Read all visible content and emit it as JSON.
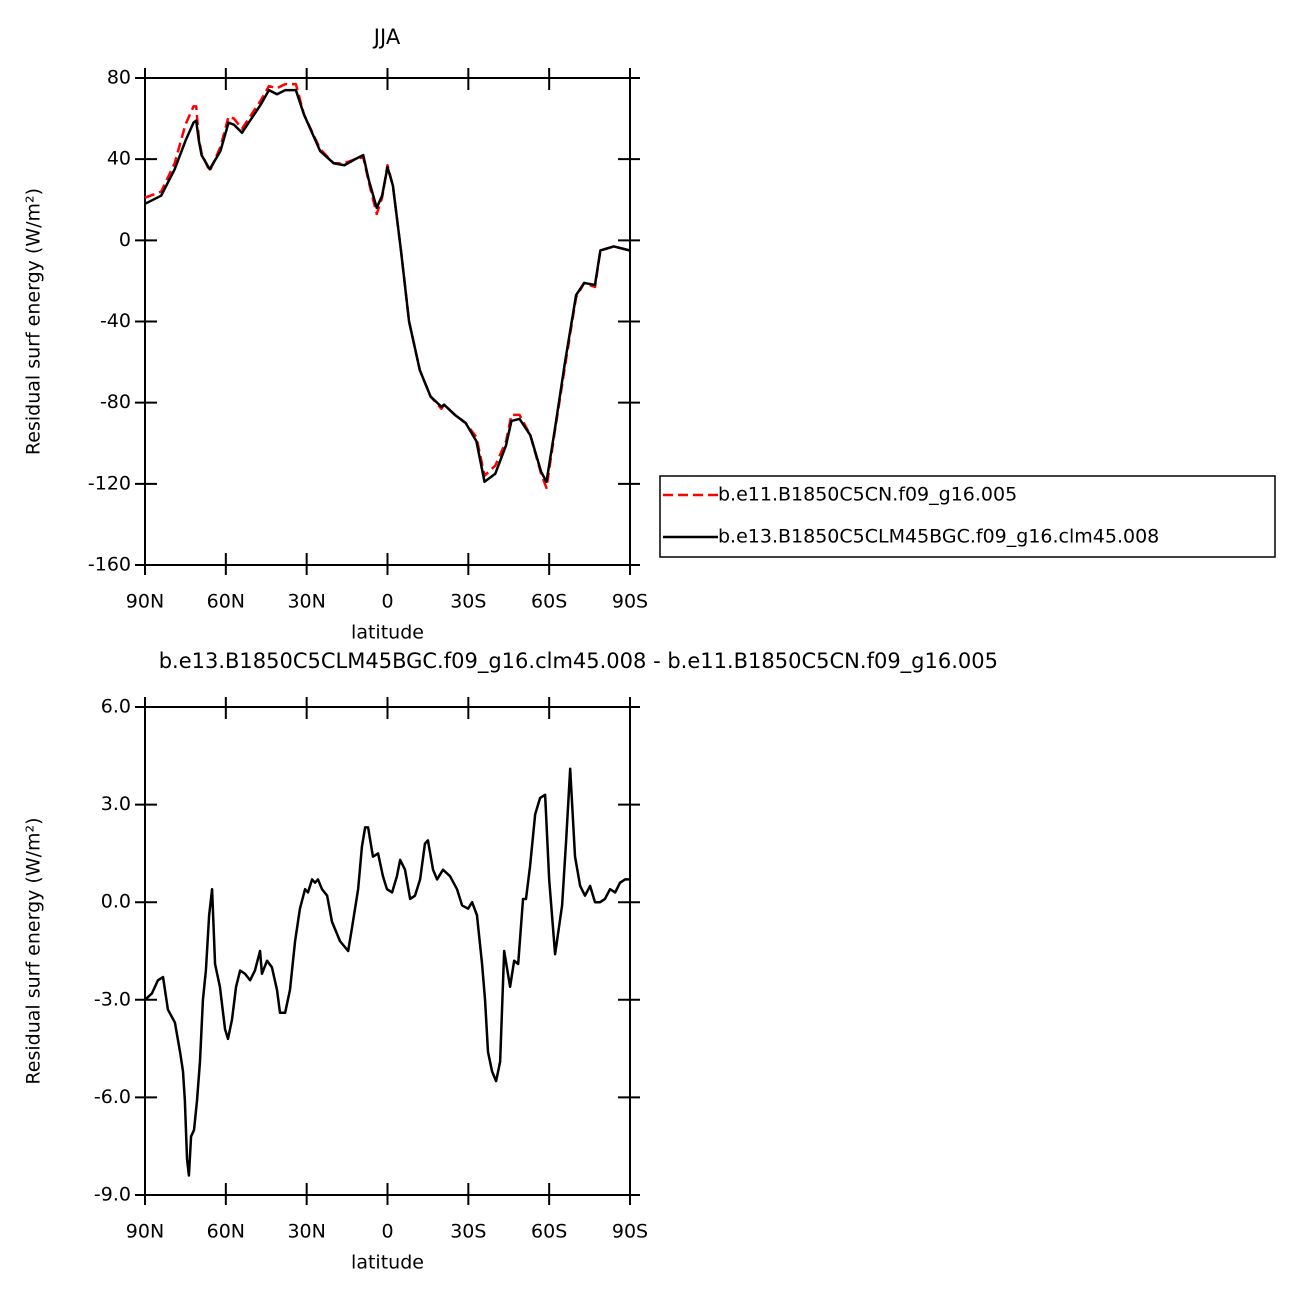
{
  "chart_data": [
    {
      "type": "line",
      "title": "JJA",
      "ylabel": "Residual surf energy (W/m²)",
      "xlabel": "latitude",
      "xlim": [
        90,
        -90
      ],
      "xticks": [
        {
          "value": 90,
          "label": "90N"
        },
        {
          "value": 60,
          "label": "60N"
        },
        {
          "value": 30,
          "label": "30N"
        },
        0,
        {
          "value": -30,
          "label": "30S"
        },
        {
          "value": -60,
          "label": "60S"
        },
        {
          "value": -90,
          "label": "90S"
        }
      ],
      "ylim": [
        -160,
        80
      ],
      "yticks": [
        80,
        40,
        0,
        -40,
        -80,
        -120,
        -160
      ],
      "legend": "right",
      "x": [
        90,
        84,
        79,
        75,
        72,
        71,
        70,
        69,
        66,
        62,
        59,
        57,
        54,
        51,
        47,
        44,
        41,
        38,
        34,
        31,
        25,
        20,
        16,
        12,
        9,
        7,
        4,
        2,
        0,
        -2,
        -5,
        -8,
        -12,
        -16,
        -20,
        -21,
        -25,
        -29,
        -33,
        -36,
        -40,
        -44,
        -46,
        -49,
        -53,
        -57,
        -59,
        -62,
        -66,
        -70,
        -73,
        -77,
        -79,
        -84,
        -90
      ],
      "series": [
        {
          "name": "b.e11.B1850C5CN.f09_g16.005",
          "color": "#ff0000",
          "linestyle": "dashed",
          "values": [
            21,
            24,
            38,
            57,
            66,
            66,
            50,
            43,
            34,
            46,
            61,
            60,
            55,
            61,
            69,
            76,
            75,
            77,
            77,
            62,
            45,
            38,
            38,
            40,
            41,
            29,
            13,
            21,
            37,
            27,
            -5,
            -40,
            -64,
            -77,
            -83,
            -81,
            -86,
            -90,
            -97,
            -116,
            -111,
            -99,
            -86,
            -86,
            -96,
            -115,
            -122,
            -95,
            -61,
            -28,
            -21,
            -23,
            -5,
            -3,
            -5
          ]
        },
        {
          "name": "b.e13.B1850C5CLM45BGC.f09_g16.clm45.008",
          "color": "#000000",
          "linestyle": "solid",
          "values": [
            18,
            22,
            35,
            49,
            58,
            59,
            49,
            42,
            35,
            44,
            58,
            57,
            53,
            59,
            67,
            74,
            72,
            74,
            74,
            62,
            44,
            38,
            37,
            40,
            42,
            30,
            16,
            22,
            36,
            27,
            -5,
            -40,
            -64,
            -77,
            -82,
            -81,
            -86,
            -90,
            -99,
            -119,
            -115,
            -101,
            -89,
            -88,
            -96,
            -114,
            -119,
            -94,
            -59,
            -27,
            -21,
            -22,
            -5,
            -3,
            -5
          ]
        }
      ]
    },
    {
      "type": "line",
      "title": "b.e13.B1850C5CLM45BGC.f09_g16.clm45.008 - b.e11.B1850C5CN.f09_g16.005",
      "ylabel": "Residual surf energy (W/m²)",
      "xlabel": "latitude",
      "xlim": [
        90,
        -90
      ],
      "xticks": [
        {
          "value": 90,
          "label": "90N"
        },
        {
          "value": 60,
          "label": "60N"
        },
        {
          "value": 30,
          "label": "30N"
        },
        0,
        {
          "value": -30,
          "label": "30S"
        },
        {
          "value": -60,
          "label": "60S"
        },
        {
          "value": -90,
          "label": "90S"
        }
      ],
      "ylim": [
        -9,
        6
      ],
      "yticks": [
        {
          "value": 6,
          "label": "6.0"
        },
        {
          "value": 3,
          "label": "3.0"
        },
        {
          "value": 0,
          "label": "0.0"
        },
        {
          "value": -3,
          "label": "-3.0"
        },
        {
          "value": -6,
          "label": "-6.0"
        },
        {
          "value": -9,
          "label": "-9.0"
        }
      ],
      "x": [
        90,
        87.4,
        85.2,
        83.3,
        81.5,
        78.9,
        77.0,
        75.9,
        75.2,
        74.4,
        73.7,
        72.9,
        71.8,
        70.7,
        69.6,
        68.5,
        67.4,
        66.2,
        65.1,
        64.0,
        62.2,
        60.3,
        59.2,
        57.7,
        56.2,
        54.7,
        52.9,
        51.0,
        49.2,
        47.3,
        46.6,
        44.7,
        42.9,
        41.0,
        39.9,
        38.0,
        36.2,
        34.3,
        32.5,
        30.6,
        29.5,
        28.0,
        26.9,
        25.8,
        24.3,
        22.4,
        20.6,
        17.6,
        14.6,
        13.2,
        10.9,
        9.5,
        8.3,
        7.2,
        5.4,
        3.5,
        1.7,
        0.2,
        -1.7,
        -3.5,
        -4.7,
        -6.5,
        -8.4,
        -10.2,
        -12.1,
        -13.9,
        -15.0,
        -16.9,
        -18.4,
        -20.6,
        -23.2,
        -25.8,
        -27.7,
        -29.9,
        -31.4,
        -33.2,
        -35.1,
        -36.2,
        -37.3,
        -38.8,
        -40.3,
        -41.8,
        -43.3,
        -45.5,
        -47.0,
        -48.5,
        -50.3,
        -51.4,
        -52.9,
        -54.8,
        -56.6,
        -58.5,
        -60.0,
        -62.2,
        -64.8,
        -66.3,
        -67.8,
        -69.6,
        -71.5,
        -73.3,
        -75.2,
        -77.0,
        -78.9,
        -80.7,
        -82.6,
        -84.5,
        -86.3,
        -88.2,
        -90
      ],
      "series": [
        {
          "color": "#000000",
          "linestyle": "solid",
          "values": [
            -3.0,
            -2.8,
            -2.4,
            -2.3,
            -3.3,
            -3.7,
            -4.6,
            -5.2,
            -6.1,
            -7.9,
            -8.4,
            -7.2,
            -7.0,
            -6.1,
            -4.9,
            -3.0,
            -2.1,
            -0.4,
            0.4,
            -1.9,
            -2.6,
            -3.9,
            -4.2,
            -3.6,
            -2.6,
            -2.1,
            -2.2,
            -2.4,
            -2.1,
            -1.5,
            -2.2,
            -1.8,
            -2.0,
            -2.7,
            -3.4,
            -3.4,
            -2.7,
            -1.2,
            -0.2,
            0.4,
            0.3,
            0.7,
            0.6,
            0.7,
            0.4,
            0.2,
            -0.6,
            -1.2,
            -1.5,
            -0.8,
            0.4,
            1.7,
            2.3,
            2.3,
            1.4,
            1.5,
            0.8,
            0.4,
            0.3,
            0.8,
            1.3,
            1.0,
            0.1,
            0.2,
            0.7,
            1.8,
            1.9,
            1.0,
            0.7,
            1.0,
            0.8,
            0.4,
            -0.1,
            -0.2,
            0.0,
            -0.4,
            -1.9,
            -3.0,
            -4.6,
            -5.2,
            -5.5,
            -4.9,
            -1.5,
            -2.6,
            -1.8,
            -1.9,
            0.1,
            0.1,
            1.1,
            2.7,
            3.2,
            3.3,
            0.7,
            -1.6,
            -0.1,
            1.9,
            4.1,
            1.4,
            0.5,
            0.2,
            0.5,
            0.0,
            0.0,
            0.1,
            0.4,
            0.3,
            0.6,
            0.7,
            0.7
          ]
        }
      ]
    }
  ]
}
